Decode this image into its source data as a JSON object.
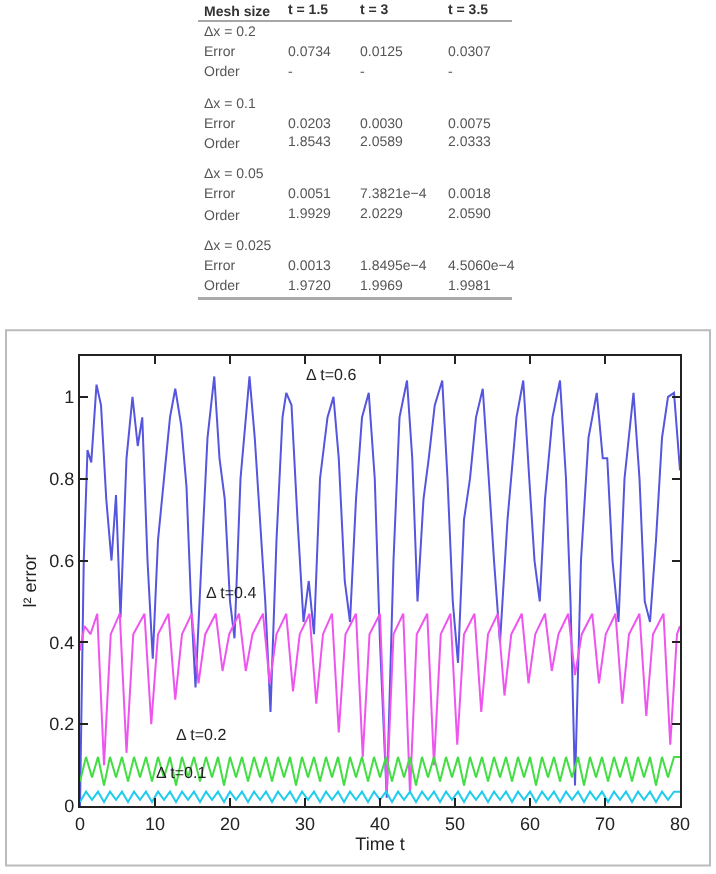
{
  "chart_data": [
    {
      "type": "other",
      "categories": [
        "Mesh size",
        "t = 1.5",
        "t = 3",
        "t = 3.5"
      ],
      "y_categories": [
        "Δx = 0.2",
        "Error",
        "Order",
        "Δx = 0.1",
        "Error",
        "Order",
        "Δx = 0.05",
        "Error",
        "Order",
        "Δx = 0.025",
        "Error",
        "Order"
      ],
      "cell_labels": [
        [
          null,
          null,
          null
        ],
        [
          "0.0734",
          "0.0125",
          "0.0307"
        ],
        [
          "-",
          "-",
          "-"
        ],
        [
          null,
          null,
          null
        ],
        [
          "0.0203",
          "0.0030",
          "0.0075"
        ],
        [
          "1.8543",
          "2.0589",
          "2.0333"
        ],
        [
          null,
          null,
          null
        ],
        [
          "0.0051",
          "7.3821e−4",
          "0.0018"
        ],
        [
          "1.9929",
          "2.0229",
          "2.0590"
        ],
        [
          null,
          null,
          null
        ],
        [
          "0.0013",
          "1.8495e−4",
          "4.5060e−4"
        ],
        [
          "1.9720",
          "1.9969",
          "1.9981"
        ]
      ]
    },
    {
      "type": "line",
      "xlabel": "Time t",
      "ylabel": "l² error",
      "xlim": [
        0,
        80
      ],
      "ylim": [
        0,
        1.1
      ],
      "xticks": [
        0,
        10,
        20,
        30,
        40,
        50,
        60,
        70,
        80
      ],
      "yticks": [
        0,
        0.2,
        0.4,
        0.6,
        0.8,
        1
      ],
      "x": [
        0,
        0.8,
        1.6,
        2.4,
        3.2,
        4,
        4.8,
        5.6,
        6.4,
        7.2,
        8,
        8.8,
        9.6,
        10.4,
        11.2,
        12,
        12.8,
        13.6,
        14.4,
        15.2,
        16,
        16.8,
        17.6,
        18.4,
        19.2,
        20,
        20.8,
        21.6,
        22.4,
        23.2,
        24,
        24.8,
        25.6,
        26.4,
        27.2,
        28,
        28.8,
        29.6,
        30.4,
        31.2,
        32,
        32.8,
        33.6,
        34.4,
        35.2,
        36,
        36.8,
        37.6,
        38.4,
        39.2,
        40,
        40.8,
        41.6,
        42.4,
        43.2,
        44,
        44.8,
        45.6,
        46.4,
        47.2,
        48,
        48.8,
        49.6,
        50.4,
        51.2,
        52,
        52.8,
        53.6,
        54.4,
        55.2,
        56,
        56.8,
        57.6,
        58.4,
        59.2,
        60,
        60.8,
        61.6,
        62.4,
        63.2,
        64,
        64.8,
        65.6,
        66.4,
        67.2,
        68,
        68.8,
        69.6,
        70.4,
        71.2,
        72,
        72.8,
        73.6,
        74.4,
        75.2,
        76,
        76.8,
        77.6,
        78.4,
        79.2,
        80
      ],
      "series": [
        {
          "color": "#5555dd",
          "x": [
            0,
            0.5,
            1,
            1.5,
            2.2,
            2.8,
            3.5,
            4.2,
            4.8,
            5.4,
            6.2,
            7,
            7.7,
            8.3,
            9,
            9.7,
            10.4,
            11.2,
            12,
            12.7,
            13.5,
            14.2,
            14.8,
            15.4,
            16.2,
            17,
            17.9,
            18.6,
            19.3,
            20,
            20.6,
            21.4,
            22.6,
            23.3,
            24,
            24.7,
            25.4,
            26.2,
            27,
            27.5,
            28.2,
            29,
            29.8,
            30.5,
            31.2,
            32,
            33,
            33.8,
            34.5,
            35.3,
            36,
            36.8,
            37.6,
            38.5,
            39.3,
            40,
            40.9,
            41.8,
            42.6,
            43.6,
            44.3,
            45,
            45.8,
            46.5,
            47.3,
            48.3,
            49,
            49.7,
            50.4,
            51.2,
            52,
            52.8,
            53.7,
            54.5,
            55.2,
            56,
            57,
            58.2,
            59.1,
            59.9,
            60.6,
            61.3,
            62,
            63,
            64,
            64.8,
            65.4,
            66,
            66.8,
            67.8,
            68.9,
            69.7,
            70.3,
            71,
            71.8,
            72.6,
            73.8,
            74.6,
            75.3,
            76,
            76.8,
            77.6,
            78.4,
            79.2,
            80
          ],
          "values": [
            0.0,
            0.6,
            0.87,
            0.84,
            1.03,
            0.98,
            0.75,
            0.6,
            0.76,
            0.46,
            0.85,
            1.0,
            0.88,
            0.95,
            0.6,
            0.36,
            0.65,
            0.8,
            0.95,
            1.02,
            0.93,
            0.78,
            0.5,
            0.29,
            0.6,
            0.9,
            1.05,
            0.85,
            0.75,
            0.5,
            0.41,
            0.8,
            1.05,
            0.9,
            0.7,
            0.5,
            0.23,
            0.65,
            0.95,
            1.01,
            0.98,
            0.7,
            0.45,
            0.55,
            0.42,
            0.8,
            0.95,
            1.0,
            0.85,
            0.55,
            0.45,
            0.75,
            0.95,
            1.01,
            0.8,
            0.4,
            0.02,
            0.6,
            0.95,
            1.04,
            0.85,
            0.5,
            0.75,
            0.85,
            0.98,
            1.04,
            0.8,
            0.5,
            0.35,
            0.7,
            0.8,
            0.95,
            1.02,
            0.8,
            0.6,
            0.4,
            0.7,
            0.95,
            1.04,
            0.8,
            0.6,
            0.5,
            0.75,
            0.95,
            1.04,
            0.8,
            0.5,
            0.05,
            0.6,
            0.9,
            1.01,
            0.85,
            0.85,
            0.6,
            0.45,
            0.8,
            1.01,
            0.8,
            0.5,
            0.45,
            0.65,
            0.9,
            1.0,
            1.01,
            0.82
          ]
        },
        {
          "color": "#ee55ee",
          "x": [
            0,
            0.6,
            1.4,
            2.3,
            3.2,
            4.1,
            5.3,
            6.2,
            7.1,
            8.6,
            9.5,
            10.4,
            11.8,
            12.7,
            13.6,
            14.9,
            15.8,
            16.7,
            18.1,
            19,
            19.9,
            21.2,
            22.1,
            23,
            24.4,
            25.3,
            26.2,
            27.5,
            28.4,
            29.3,
            30.6,
            31.5,
            32.4,
            33.6,
            34.5,
            35.4,
            36.8,
            37.7,
            38.6,
            40,
            40.9,
            41.8,
            43.1,
            44,
            44.9,
            46.3,
            47.2,
            48.1,
            49.4,
            50.3,
            51.2,
            52.6,
            53.5,
            54.4,
            55.7,
            56.6,
            57.5,
            58.9,
            59.8,
            60.7,
            62,
            62.9,
            63.8,
            65.1,
            66,
            66.9,
            68.3,
            69.2,
            70.1,
            71.4,
            72.3,
            73.2,
            74.6,
            75.5,
            76.4,
            77.8,
            78.7,
            79.6,
            80
          ],
          "values": [
            0.38,
            0.44,
            0.42,
            0.47,
            0.1,
            0.42,
            0.47,
            0.13,
            0.42,
            0.47,
            0.2,
            0.42,
            0.47,
            0.26,
            0.42,
            0.47,
            0.3,
            0.42,
            0.47,
            0.33,
            0.42,
            0.47,
            0.33,
            0.42,
            0.47,
            0.3,
            0.42,
            0.47,
            0.28,
            0.42,
            0.47,
            0.25,
            0.42,
            0.47,
            0.18,
            0.42,
            0.47,
            0.12,
            0.42,
            0.47,
            0.03,
            0.42,
            0.47,
            0.03,
            0.42,
            0.47,
            0.1,
            0.42,
            0.47,
            0.15,
            0.42,
            0.47,
            0.23,
            0.42,
            0.47,
            0.27,
            0.42,
            0.47,
            0.3,
            0.42,
            0.47,
            0.33,
            0.42,
            0.47,
            0.32,
            0.42,
            0.47,
            0.3,
            0.42,
            0.47,
            0.25,
            0.42,
            0.47,
            0.22,
            0.42,
            0.47,
            0.15,
            0.42,
            0.44
          ]
        },
        {
          "color": "#44dd44",
          "values": [
            0.06,
            0.12,
            0.07,
            0.12,
            0.05,
            0.12,
            0.07,
            0.12,
            0.06,
            0.12,
            0.07,
            0.12,
            0.06,
            0.12,
            0.07,
            0.12,
            0.05,
            0.12,
            0.07,
            0.12,
            0.06,
            0.12,
            0.07,
            0.12,
            0.05,
            0.12,
            0.07,
            0.12,
            0.06,
            0.12,
            0.07,
            0.12,
            0.06,
            0.12,
            0.07,
            0.12,
            0.05,
            0.12,
            0.07,
            0.12,
            0.06,
            0.12,
            0.07,
            0.12,
            0.05,
            0.12,
            0.07,
            0.12,
            0.06,
            0.12,
            0.07,
            0.12,
            0.06,
            0.12,
            0.07,
            0.12,
            0.05,
            0.12,
            0.07,
            0.12,
            0.06,
            0.12,
            0.07,
            0.12,
            0.05,
            0.12,
            0.07,
            0.12,
            0.06,
            0.12,
            0.07,
            0.12,
            0.06,
            0.12,
            0.07,
            0.12,
            0.05,
            0.12,
            0.07,
            0.12,
            0.06,
            0.12,
            0.07,
            0.12,
            0.05,
            0.12,
            0.07,
            0.12,
            0.06,
            0.12,
            0.07,
            0.12,
            0.06,
            0.12,
            0.07,
            0.12,
            0.05,
            0.12,
            0.07,
            0.12,
            0.12
          ]
        },
        {
          "color": "#22ccee",
          "values": [
            0.01,
            0.035,
            0.015,
            0.035,
            0.01,
            0.035,
            0.015,
            0.035,
            0.01,
            0.035,
            0.015,
            0.035,
            0.01,
            0.035,
            0.015,
            0.035,
            0.01,
            0.035,
            0.015,
            0.035,
            0.01,
            0.035,
            0.015,
            0.035,
            0.01,
            0.035,
            0.015,
            0.035,
            0.01,
            0.035,
            0.015,
            0.035,
            0.01,
            0.035,
            0.015,
            0.035,
            0.01,
            0.035,
            0.015,
            0.035,
            0.01,
            0.035,
            0.015,
            0.035,
            0.01,
            0.035,
            0.015,
            0.035,
            0.01,
            0.035,
            0.015,
            0.035,
            0.01,
            0.035,
            0.015,
            0.035,
            0.01,
            0.035,
            0.015,
            0.035,
            0.01,
            0.035,
            0.015,
            0.035,
            0.01,
            0.035,
            0.015,
            0.035,
            0.01,
            0.035,
            0.015,
            0.035,
            0.01,
            0.035,
            0.015,
            0.035,
            0.01,
            0.035,
            0.015,
            0.035,
            0.01,
            0.035,
            0.015,
            0.035,
            0.01,
            0.035,
            0.015,
            0.035,
            0.01,
            0.035,
            0.015,
            0.035,
            0.01,
            0.035,
            0.015,
            0.035,
            0.01,
            0.035,
            0.015,
            0.035,
            0.035
          ]
        }
      ],
      "annotations": [
        {
          "text": "Δ t=0.6",
          "x": 33.5,
          "y": 1.02
        },
        {
          "text": "Δ t=0.4",
          "x": 20.3,
          "y": 0.49
        },
        {
          "text": "Δ t=0.2",
          "x": 16.2,
          "y": 0.14
        },
        {
          "text": "Δ t=0.1",
          "x": 13.6,
          "y": 0.05
        }
      ]
    }
  ]
}
